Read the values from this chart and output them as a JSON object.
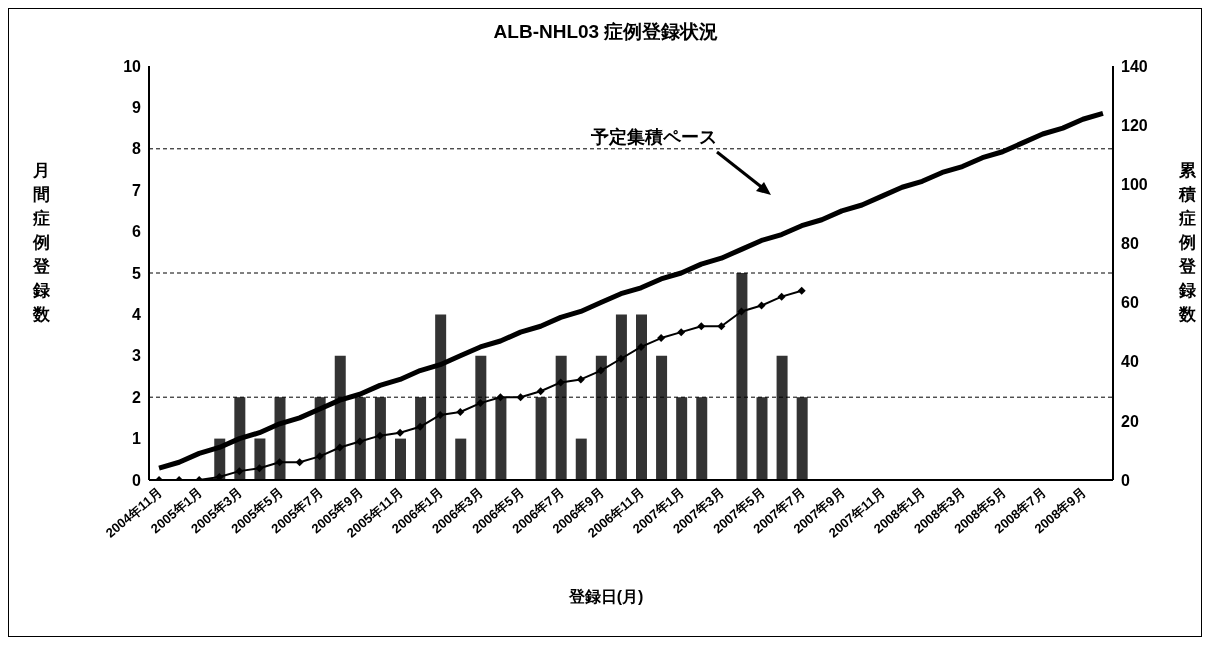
{
  "chart_data": {
    "type": "bar",
    "title": "ALB-NHL03 症例登録状況",
    "xlabel": "登録日(月)",
    "ylabel": "月間症例登録数",
    "y2label": "累積症例登録数",
    "categories": [
      "2004年11月",
      null,
      "2005年1月",
      null,
      "2005年3月",
      null,
      "2005年5月",
      null,
      "2005年7月",
      null,
      "2005年9月",
      null,
      "2005年11月",
      null,
      "2006年1月",
      null,
      "2006年3月",
      null,
      "2006年5月",
      null,
      "2006年7月",
      null,
      "2006年9月",
      null,
      "2006年11月",
      null,
      "2007年1月",
      null,
      "2007年3月",
      null,
      "2007年5月",
      null,
      "2007年7月",
      null,
      "2007年9月",
      null,
      "2007年11月",
      null,
      "2008年1月",
      null,
      "2008年3月",
      null,
      "2008年5月",
      null,
      "2008年7月",
      null,
      "2008年9月",
      null
    ],
    "series": [
      {
        "axis": "y",
        "color": "#333333",
        "values": [
          0,
          0,
          0,
          1,
          2,
          1,
          2,
          0,
          2,
          3,
          2,
          2,
          1,
          2,
          4,
          1,
          3,
          2,
          0,
          2,
          3,
          1,
          3,
          4,
          4,
          3,
          2,
          2,
          0,
          5,
          2,
          3,
          2,
          null,
          null,
          null,
          null,
          null,
          null,
          null,
          null,
          null,
          null,
          null,
          null,
          null,
          null,
          null
        ]
      },
      {
        "type": "line",
        "axis": "y2",
        "color": "#000000",
        "marker": "diamond",
        "values": [
          0,
          0,
          0,
          1,
          3,
          4,
          6,
          6,
          8,
          11,
          13,
          15,
          16,
          18,
          22,
          23,
          26,
          28,
          28,
          30,
          33,
          34,
          37,
          41,
          45,
          48,
          50,
          52,
          52,
          57,
          59,
          62,
          64,
          null,
          null,
          null,
          null,
          null,
          null,
          null,
          null,
          null,
          null,
          null,
          null,
          null,
          null,
          null
        ]
      },
      {
        "type": "line",
        "axis": "y2",
        "name": "予定集積ペース",
        "color": "#000000",
        "marker": "none",
        "values": [
          4,
          6,
          9,
          11,
          14,
          16,
          19,
          21,
          24,
          27,
          29,
          32,
          34,
          37,
          39,
          42,
          45,
          47,
          50,
          52,
          55,
          57,
          60,
          63,
          65,
          68,
          70,
          73,
          75,
          78,
          81,
          83,
          86,
          88,
          91,
          93,
          96,
          99,
          101,
          104,
          106,
          109,
          111,
          114,
          117,
          119,
          122,
          124
        ]
      }
    ],
    "ylim": [
      0,
      10
    ],
    "yticks": [
      0,
      1,
      2,
      3,
      4,
      5,
      6,
      7,
      8,
      9,
      10
    ],
    "y2lim": [
      0,
      140
    ],
    "y2ticks": [
      0,
      20,
      40,
      60,
      80,
      100,
      120,
      140
    ],
    "ref_lines": [
      {
        "axis": "y",
        "value": 2,
        "color": "#000000",
        "line_style": "dashed"
      },
      {
        "axis": "y",
        "value": 5,
        "color": "#000000",
        "line_style": "dashed"
      },
      {
        "axis": "y",
        "value": 8,
        "color": "#000000",
        "line_style": "dashed"
      }
    ]
  }
}
